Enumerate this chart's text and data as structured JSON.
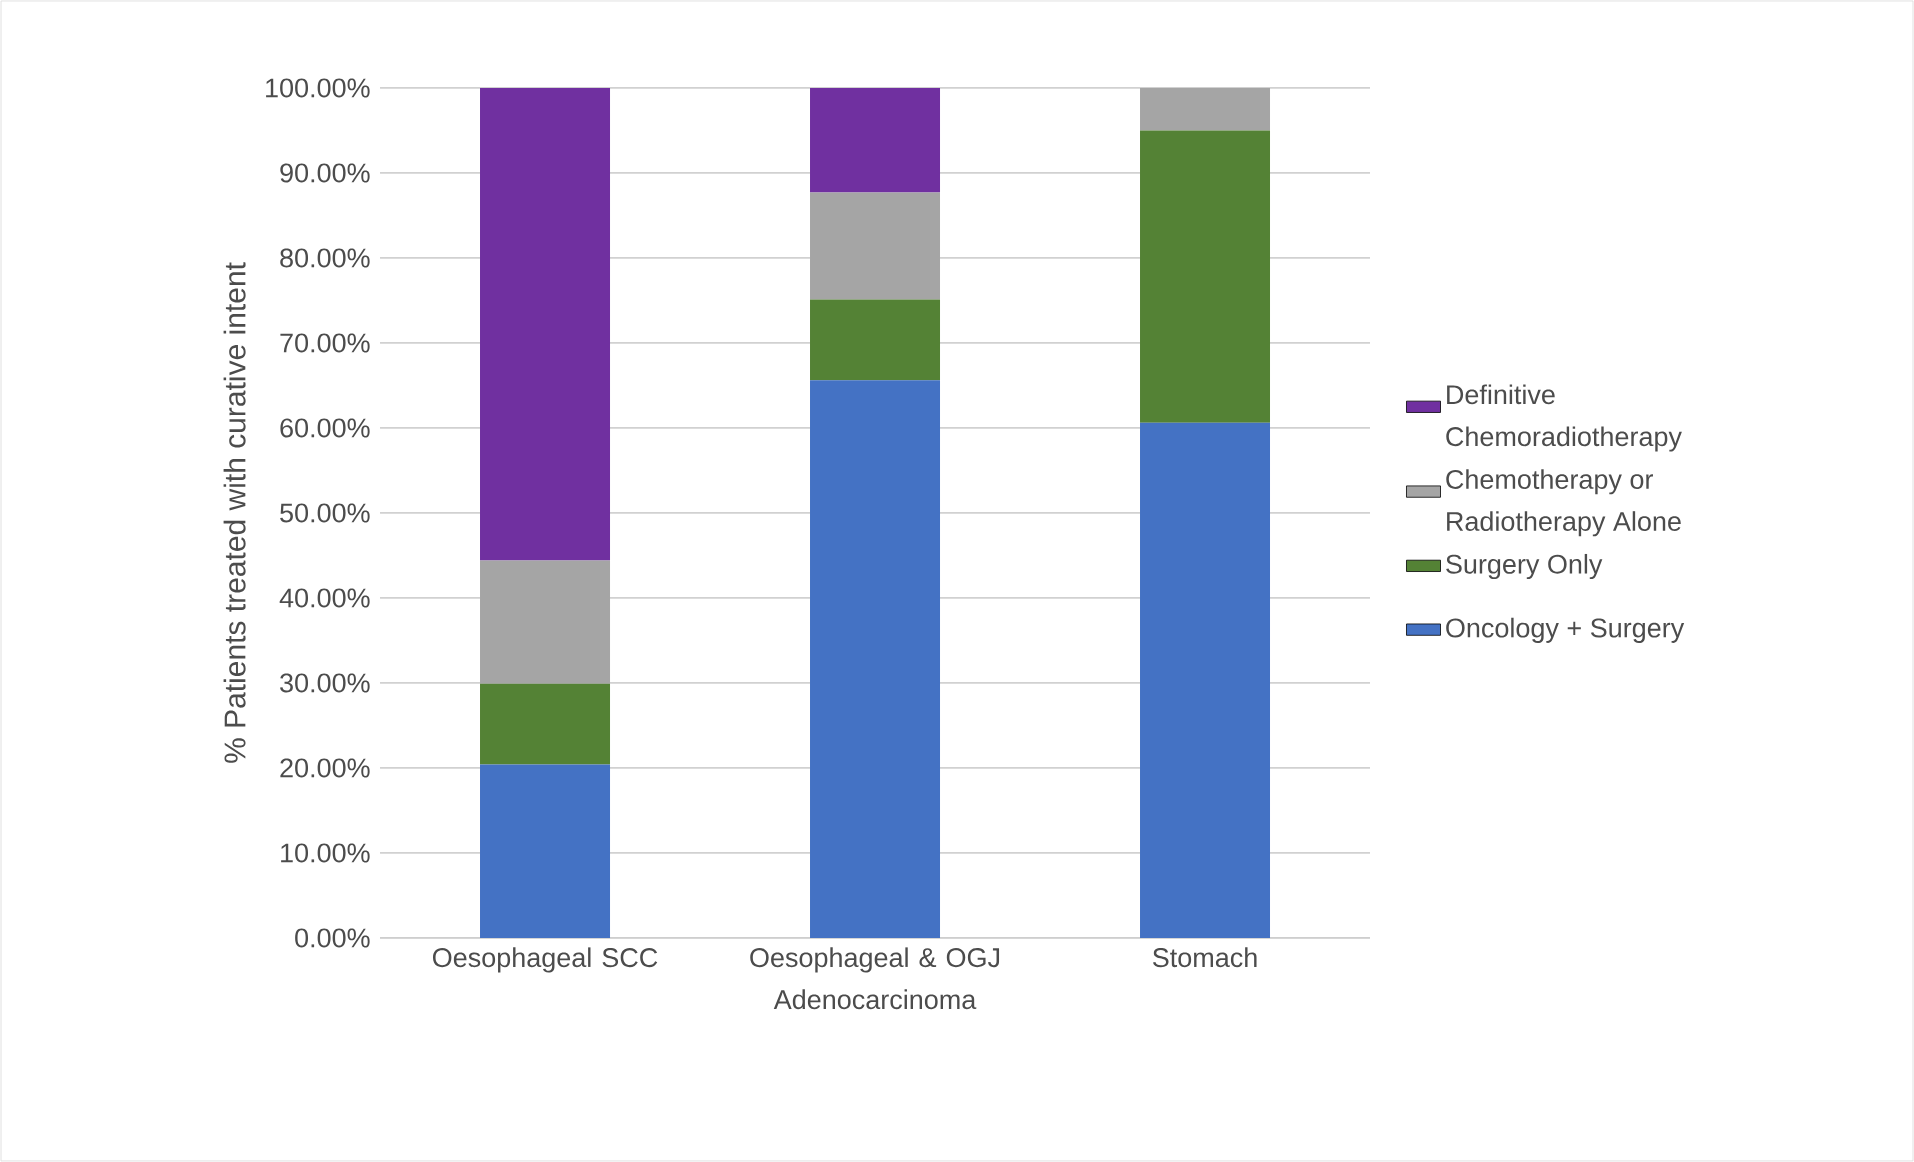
{
  "chart_data": {
    "type": "bar",
    "stacked": true,
    "ylabel": "% Patients treated with curative intent",
    "categories": [
      "Oesophageal SCC",
      "Oesophageal & OGJ Adenocarcinoma",
      "Stomach"
    ],
    "series": [
      {
        "name": "Oncology + Surgery",
        "color": "#4472c4",
        "values": [
          20.4,
          65.6,
          60.6
        ]
      },
      {
        "name": "Surgery Only",
        "color": "#548235",
        "values": [
          9.5,
          9.5,
          34.4
        ]
      },
      {
        "name": "Chemotherapy or Radiotherapy Alone",
        "color": "#a5a5a5",
        "values": [
          14.5,
          12.6,
          5.0
        ]
      },
      {
        "name": "Definitive Chemoradiotherapy",
        "color": "#7030a0",
        "values": [
          55.6,
          12.3,
          0
        ]
      }
    ],
    "ylim": [
      0,
      100
    ],
    "yticks": [
      {
        "value": 0,
        "label": "0.00%"
      },
      {
        "value": 10,
        "label": "10.00%"
      },
      {
        "value": 20,
        "label": "20.00%"
      },
      {
        "value": 30,
        "label": "30.00%"
      },
      {
        "value": 40,
        "label": "40.00%"
      },
      {
        "value": 50,
        "label": "50.00%"
      },
      {
        "value": 60,
        "label": "60.00%"
      },
      {
        "value": 70,
        "label": "70.00%"
      },
      {
        "value": 80,
        "label": "80.00%"
      },
      {
        "value": 90,
        "label": "90.00%"
      },
      {
        "value": 100,
        "label": "100.00%"
      }
    ],
    "grid": "y",
    "legend": "right"
  }
}
